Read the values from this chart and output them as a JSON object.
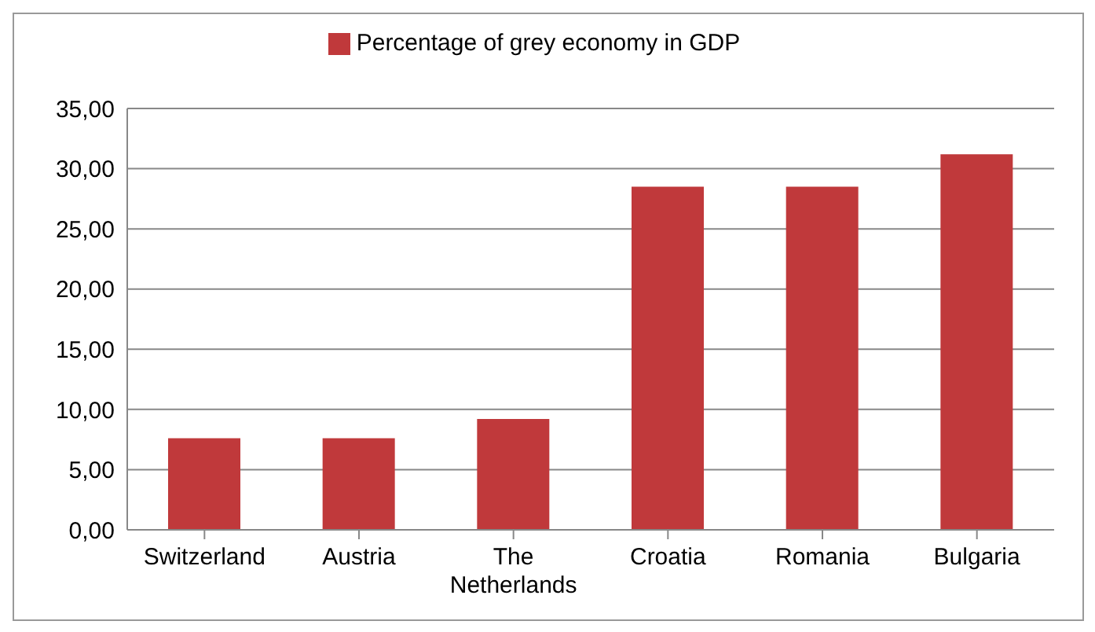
{
  "chart_data": {
    "type": "bar",
    "categories": [
      "Switzerland",
      "Austria",
      "The Netherlands",
      "Croatia",
      "Romania",
      "Bulgaria"
    ],
    "series": [
      {
        "name": "Percentage of grey economy in GDP",
        "color": "#c0393b",
        "values": [
          7.6,
          7.6,
          9.2,
          28.5,
          28.5,
          31.2
        ]
      }
    ],
    "ylim": [
      0,
      35
    ],
    "yticks": [
      {
        "value": 0,
        "label": "0,00"
      },
      {
        "value": 5,
        "label": "5,00"
      },
      {
        "value": 10,
        "label": "10,00"
      },
      {
        "value": 15,
        "label": "15,00"
      },
      {
        "value": 20,
        "label": "20,00"
      },
      {
        "value": 25,
        "label": "25,00"
      },
      {
        "value": 30,
        "label": "30,00"
      },
      {
        "value": 35,
        "label": "35,00"
      }
    ],
    "grid": "y",
    "legend": "top"
  }
}
